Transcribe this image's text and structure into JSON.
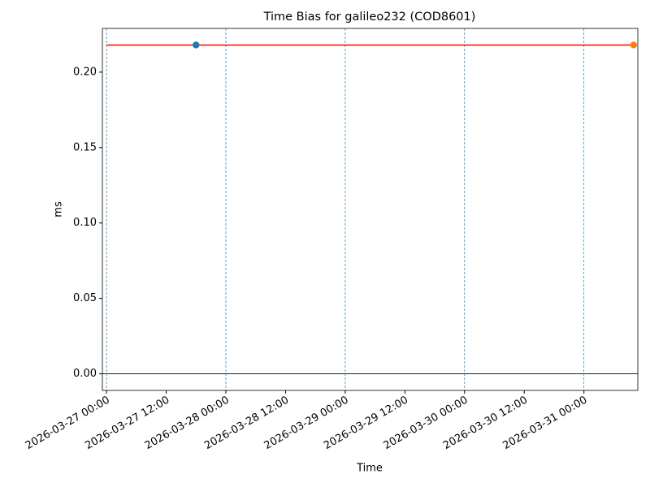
{
  "chart_data": {
    "type": "scatter",
    "title": "Time Bias for galileo232 (COD8601)",
    "x_label": "Time",
    "y_label": "ms",
    "series": [
      {
        "type": "line",
        "color": "#ff0000",
        "x": [
          "2026-03-27 00:00",
          "2026-03-31 10:00"
        ],
        "values": [
          0.218,
          0.218
        ]
      },
      {
        "type": "scatter",
        "color": "#1f77b4",
        "x": [
          "2026-03-27 18:00"
        ],
        "values": [
          0.218
        ]
      },
      {
        "type": "scatter",
        "color": "#ff7f0e",
        "x": [
          "2026-03-31 10:00"
        ],
        "values": [
          0.218
        ]
      }
    ],
    "vlines": {
      "color": "#1f77b4",
      "x": [
        "2026-03-27 00:00",
        "2026-03-28 00:00",
        "2026-03-29 00:00",
        "2026-03-30 00:00",
        "2026-03-31 00:00"
      ]
    },
    "hline": {
      "color": "#000000",
      "y": 0
    },
    "xlim": [
      "2026-03-26 23:10",
      "2026-03-31 10:50"
    ],
    "xticks": [
      "2026-03-27 00:00",
      "2026-03-27 12:00",
      "2026-03-28 00:00",
      "2026-03-28 12:00",
      "2026-03-29 00:00",
      "2026-03-29 12:00",
      "2026-03-30 00:00",
      "2026-03-30 12:00",
      "2026-03-31 00:00"
    ],
    "ylim": [
      -0.011,
      0.229
    ],
    "yticks": [
      {
        "value": 0,
        "label": "0.00"
      },
      {
        "value": 0.05,
        "label": "0.05"
      },
      {
        "value": 0.1,
        "label": "0.10"
      },
      {
        "value": 0.15,
        "label": "0.15"
      },
      {
        "value": 0.2,
        "label": "0.20"
      }
    ]
  }
}
